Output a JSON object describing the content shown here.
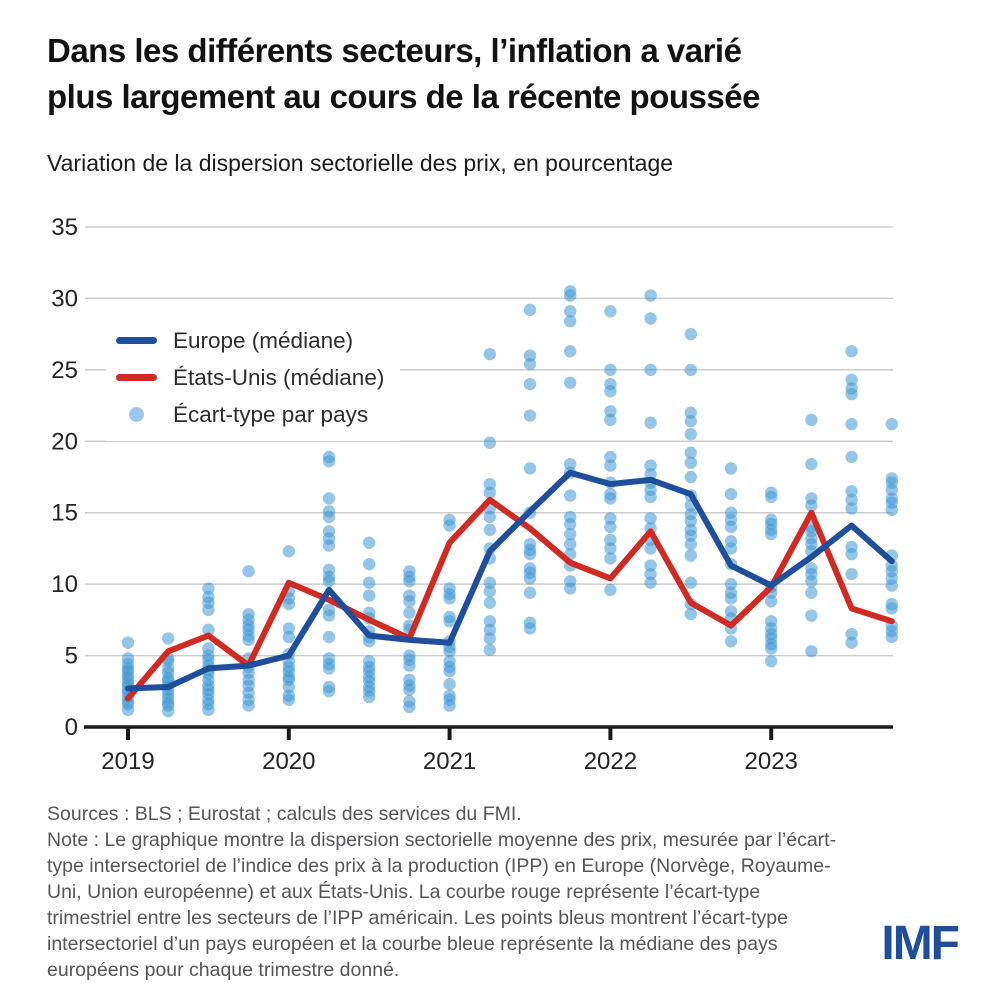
{
  "header": {
    "title_line1": "Dans les différents secteurs, l’inflation a varié",
    "title_line2": "plus largement au cours de la récente poussée",
    "subtitle": "Variation de la dispersion sectorielle des prix, en pourcentage"
  },
  "legend": {
    "position": "top-left-inset",
    "items": [
      {
        "label": "Europe (médiane)",
        "type": "line",
        "color": "#1f4e9b"
      },
      {
        "label": "États-Unis (médiane)",
        "type": "line",
        "color": "#d02a23"
      },
      {
        "label": "Écart-type par pays",
        "type": "dot",
        "color": "#9ec7ed"
      }
    ]
  },
  "chart_data": {
    "type": "line",
    "title": "Variation de la dispersion sectorielle des prix, en pourcentage",
    "xlabel": "",
    "ylabel": "",
    "ylim": [
      0,
      35
    ],
    "y_ticks": [
      0,
      5,
      10,
      15,
      20,
      25,
      30,
      35
    ],
    "grid": "horizontal",
    "x_tick_labels": [
      "2019",
      "2020",
      "2021",
      "2022",
      "2023"
    ],
    "quarters": [
      "2019T1",
      "2019T2",
      "2019T3",
      "2019T4",
      "2020T1",
      "2020T2",
      "2020T3",
      "2020T4",
      "2021T1",
      "2021T2",
      "2021T3",
      "2021T4",
      "2022T1",
      "2022T2",
      "2022T3",
      "2022T4",
      "2023T1",
      "2023T2",
      "2023T3",
      "2023T4"
    ],
    "series": [
      {
        "name": "Europe (médiane)",
        "color": "#1f4e9b",
        "values": [
          2.7,
          2.8,
          4.1,
          4.3,
          5.0,
          9.6,
          6.4,
          6.1,
          5.9,
          12.3,
          15.1,
          17.8,
          17.0,
          17.3,
          16.3,
          11.3,
          9.9,
          11.9,
          14.1,
          11.6
        ]
      },
      {
        "name": "États-Unis (médiane)",
        "color": "#d02a23",
        "values": [
          2.0,
          5.3,
          6.4,
          4.3,
          10.1,
          8.9,
          7.5,
          6.2,
          12.9,
          15.9,
          13.9,
          11.5,
          10.4,
          13.7,
          8.7,
          7.1,
          9.8,
          15.0,
          8.3,
          7.4
        ]
      }
    ],
    "scatter": {
      "name": "Écart-type par pays",
      "color": "#3f97d3",
      "opacity": 0.55,
      "values_by_quarter": [
        [
          5.9,
          4.8,
          4.4,
          4.1,
          3.9,
          3.6,
          3.4,
          3.1,
          2.9,
          2.6,
          2.4,
          2.1,
          1.8,
          1.6,
          1.2
        ],
        [
          6.2,
          4.8,
          4.6,
          4.1,
          3.8,
          3.4,
          3.2,
          2.9,
          2.6,
          2.3,
          2.0,
          1.7,
          1.5,
          1.1
        ],
        [
          9.7,
          9.1,
          8.7,
          8.2,
          6.8,
          5.5,
          5.0,
          4.7,
          4.3,
          4.0,
          3.7,
          3.3,
          2.9,
          2.6,
          2.3,
          1.9,
          1.6,
          1.2
        ],
        [
          10.9,
          7.9,
          7.5,
          7.1,
          6.8,
          6.4,
          6.1,
          4.8,
          4.2,
          3.8,
          3.3,
          2.9,
          2.4,
          1.9,
          1.5
        ],
        [
          12.3,
          9.5,
          9.0,
          8.6,
          6.9,
          6.3,
          5.1,
          4.6,
          4.2,
          3.9,
          3.5,
          3.3,
          2.8,
          2.2,
          1.9
        ],
        [
          18.9,
          18.6,
          16.0,
          15.1,
          14.7,
          13.7,
          13.2,
          12.7,
          11.0,
          10.5,
          10.2,
          8.2,
          7.8,
          6.3,
          4.8,
          4.4,
          4.1,
          2.8,
          2.5
        ],
        [
          12.9,
          11.4,
          10.1,
          9.2,
          8.0,
          7.6,
          6.7,
          6.3,
          6.0,
          4.6,
          4.2,
          3.9,
          3.5,
          3.2,
          2.8,
          2.5,
          2.1
        ],
        [
          10.9,
          10.5,
          10.2,
          9.2,
          8.8,
          8.0,
          7.1,
          6.8,
          5.0,
          4.7,
          4.3,
          3.3,
          2.9,
          2.6,
          1.8,
          1.4
        ],
        [
          14.5,
          14.1,
          9.7,
          9.3,
          9.0,
          7.7,
          7.4,
          6.0,
          5.6,
          5.3,
          4.6,
          4.2,
          3.9,
          3.0,
          2.2,
          1.9,
          1.5
        ],
        [
          26.1,
          19.9,
          17.0,
          16.4,
          15.3,
          14.7,
          13.8,
          12.5,
          11.8,
          10.1,
          9.5,
          8.7,
          7.4,
          6.8,
          6.2,
          5.4
        ],
        [
          29.2,
          26.0,
          25.4,
          24.0,
          21.8,
          18.1,
          15.0,
          12.8,
          12.4,
          12.1,
          11.1,
          10.8,
          10.4,
          9.4,
          7.3,
          6.9
        ],
        [
          30.5,
          30.2,
          29.1,
          28.4,
          26.3,
          24.1,
          18.4,
          17.8,
          16.2,
          14.7,
          14.2,
          13.5,
          12.8,
          12.1,
          11.3,
          10.2,
          9.7
        ],
        [
          29.1,
          25.0,
          24.0,
          23.5,
          22.1,
          21.5,
          18.9,
          18.3,
          17.1,
          16.3,
          16.0,
          14.6,
          14.0,
          13.1,
          12.5,
          11.8,
          9.6
        ],
        [
          30.2,
          28.6,
          25.0,
          21.3,
          18.3,
          17.7,
          17.1,
          16.6,
          16.1,
          14.6,
          13.9,
          13.1,
          12.5,
          11.3,
          10.7,
          10.1
        ],
        [
          27.5,
          25.0,
          22.0,
          21.4,
          20.5,
          19.2,
          18.5,
          17.5,
          16.2,
          15.5,
          14.9,
          14.4,
          13.8,
          13.4,
          12.8,
          12.0,
          10.1,
          8.6,
          7.9
        ],
        [
          18.1,
          16.3,
          15.0,
          14.5,
          14.0,
          13.0,
          12.5,
          11.4,
          10.0,
          9.4,
          9.0,
          8.1,
          7.6,
          6.9,
          6.0
        ],
        [
          16.4,
          16.1,
          14.5,
          14.2,
          13.8,
          13.5,
          9.8,
          9.4,
          8.8,
          7.4,
          6.9,
          6.5,
          6.2,
          5.8,
          5.5,
          4.6
        ],
        [
          21.5,
          18.4,
          16.0,
          15.5,
          14.0,
          13.7,
          13.2,
          12.8,
          12.3,
          11.1,
          10.7,
          10.2,
          9.4,
          7.8,
          5.3
        ],
        [
          26.3,
          24.3,
          23.7,
          23.3,
          21.2,
          18.9,
          16.5,
          15.9,
          15.3,
          12.6,
          12.1,
          10.7,
          6.5,
          5.9
        ],
        [
          21.2,
          17.4,
          17.1,
          16.6,
          16.0,
          15.7,
          15.2,
          12.0,
          11.3,
          10.9,
          10.4,
          9.9,
          8.6,
          8.3,
          7.1,
          6.7,
          6.3
        ]
      ]
    }
  },
  "footer": {
    "sources": "Sources : BLS ; Eurostat ; calculs des services du FMI.",
    "note": "Note : Le graphique montre la dispersion sectorielle moyenne des prix, mesurée par l’écart-type intersectoriel de l’indice des prix à la production (IPP) en Europe (Norvège, Royaume-Uni, Union européenne) et aux États-Unis. La courbe rouge représente l’écart-type trimestriel entre les secteurs de l’IPP américain. Les points bleus montrent l’écart-type intersectoriel d’un pays européen et la courbe bleue représente la médiane des pays européens pour chaque trimestre donné."
  },
  "logo": {
    "text": "IMF",
    "color": "#1f4e9b"
  }
}
